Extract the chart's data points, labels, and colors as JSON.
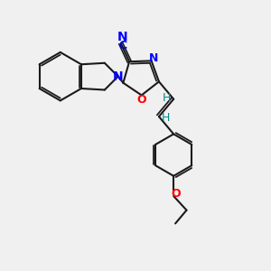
{
  "bg_color": "#f0f0f0",
  "bond_color": "#1a1a1a",
  "N_color": "#0000ff",
  "O_color": "#ff0000",
  "CN_color": "#0000cd",
  "vinyl_H_color": "#008b8b",
  "lw": 1.5,
  "fig_w": 3.0,
  "fig_h": 3.0,
  "dpi": 100,
  "xlim": [
    0,
    10
  ],
  "ylim": [
    0,
    10
  ]
}
